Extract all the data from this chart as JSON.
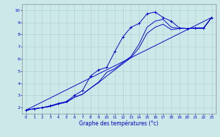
{
  "title": "Graphe des températures (°c)",
  "bg_color": "#cce8e8",
  "grid_color": "#aacccc",
  "line_color": "#0000cc",
  "xlim": [
    -0.5,
    23.5
  ],
  "ylim": [
    1.5,
    10.5
  ],
  "xticks": [
    0,
    1,
    2,
    3,
    4,
    5,
    6,
    7,
    8,
    9,
    10,
    11,
    12,
    13,
    14,
    15,
    16,
    17,
    18,
    19,
    20,
    21,
    22,
    23
  ],
  "yticks": [
    2,
    3,
    4,
    5,
    6,
    7,
    8,
    9,
    10
  ],
  "series1_x": [
    0,
    1,
    2,
    3,
    4,
    5,
    6,
    7,
    8,
    9,
    10,
    11,
    12,
    13,
    14,
    15,
    16,
    17,
    18,
    19,
    20,
    21,
    22,
    23
  ],
  "series1_y": [
    1.8,
    1.9,
    2.0,
    2.15,
    2.35,
    2.5,
    3.0,
    3.4,
    4.6,
    5.1,
    5.3,
    6.6,
    7.8,
    8.6,
    8.9,
    9.7,
    9.85,
    9.4,
    9.1,
    8.55,
    8.5,
    8.55,
    8.55,
    9.4
  ],
  "series2_x": [
    0,
    1,
    2,
    3,
    4,
    5,
    6,
    7,
    8,
    9,
    10,
    11,
    12,
    13,
    14,
    15,
    16,
    17,
    18,
    19,
    20,
    21,
    22,
    23
  ],
  "series2_y": [
    1.8,
    1.9,
    2.0,
    2.1,
    2.3,
    2.45,
    2.85,
    3.1,
    3.6,
    4.1,
    4.9,
    5.2,
    5.7,
    6.2,
    7.2,
    8.6,
    9.1,
    9.25,
    8.6,
    8.5,
    8.5,
    8.5,
    8.5,
    9.4
  ],
  "series3_x": [
    0,
    1,
    2,
    3,
    4,
    5,
    6,
    7,
    8,
    9,
    10,
    11,
    12,
    13,
    14,
    15,
    16,
    17,
    18,
    19,
    20,
    21,
    22,
    23
  ],
  "series3_y": [
    1.8,
    1.9,
    2.0,
    2.1,
    2.3,
    2.45,
    2.85,
    3.1,
    3.6,
    4.05,
    4.6,
    5.1,
    5.6,
    6.1,
    6.9,
    8.1,
    8.6,
    8.85,
    8.4,
    8.5,
    8.5,
    8.5,
    8.5,
    9.4
  ],
  "series4_x": [
    0,
    23
  ],
  "series4_y": [
    1.8,
    9.4
  ]
}
